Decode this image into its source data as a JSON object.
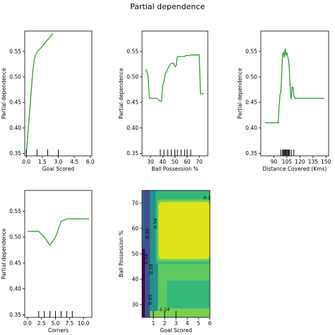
{
  "figure": {
    "title": "Partial dependence"
  },
  "chart_data": [
    {
      "type": "line",
      "xlabel": "Goal Scored",
      "ylabel": "Partial dependence",
      "xlim": [
        -0.15,
        6.15
      ],
      "ylim": [
        0.345,
        0.59
      ],
      "xticks": [
        0,
        1.5,
        3,
        4.5,
        6
      ],
      "xtick_labels": [
        "0.0",
        "1.5",
        "3.0",
        "4.5",
        "6.0"
      ],
      "yticks": [
        0.35,
        0.4,
        0.45,
        0.5,
        0.55
      ],
      "ytick_labels": [
        "0.35",
        "0.40",
        "0.45",
        "0.50",
        "0.55"
      ],
      "line_color": "#2ca02c",
      "x": [
        0,
        0.15,
        0.3,
        0.45,
        0.6,
        0.75,
        0.9,
        1.05,
        1.5,
        2.0,
        2.5
      ],
      "y": [
        0.35,
        0.39,
        0.43,
        0.47,
        0.51,
        0.535,
        0.545,
        0.55,
        0.56,
        0.573,
        0.585
      ],
      "rug": [
        0,
        1,
        2,
        3
      ]
    },
    {
      "type": "line",
      "xlabel": "Ball Possession %",
      "ylabel": "Partial dependence",
      "xlim": [
        23,
        77
      ],
      "ylim": [
        0.345,
        0.59
      ],
      "xticks": [
        30,
        40,
        50,
        60,
        70
      ],
      "xtick_labels": [
        "30",
        "40",
        "50",
        "60",
        "70"
      ],
      "yticks": [
        0.35,
        0.4,
        0.45,
        0.5,
        0.55
      ],
      "ytick_labels": [
        "0.35",
        "0.40",
        "0.45",
        "0.50",
        "0.55"
      ],
      "line_color": "#2ca02c",
      "x": [
        26,
        27,
        28,
        29,
        35,
        38,
        39,
        40,
        41,
        42,
        43,
        44,
        45,
        47,
        49,
        50,
        51,
        52,
        55,
        58,
        59,
        62,
        63,
        68,
        70,
        71,
        72,
        74
      ],
      "y": [
        0.515,
        0.51,
        0.5,
        0.458,
        0.458,
        0.452,
        0.452,
        0.485,
        0.49,
        0.505,
        0.51,
        0.515,
        0.52,
        0.527,
        0.527,
        0.52,
        0.522,
        0.54,
        0.54,
        0.54,
        0.542,
        0.542,
        0.543,
        0.543,
        0.543,
        0.467,
        0.467,
        0.467
      ],
      "rug": [
        38,
        41,
        44,
        47,
        50,
        52,
        55,
        58,
        60,
        63
      ]
    },
    {
      "type": "line",
      "xlabel": "Distance Covered (Kms)",
      "ylabel": "Partial dependence",
      "xlim": [
        75,
        153
      ],
      "ylim": [
        0.345,
        0.59
      ],
      "xticks": [
        90,
        105,
        120,
        135,
        150
      ],
      "xtick_labels": [
        "90",
        "105",
        "120",
        "135",
        "150"
      ],
      "yticks": [
        0.35,
        0.4,
        0.45,
        0.5,
        0.55
      ],
      "ytick_labels": [
        "0.35",
        "0.40",
        "0.45",
        "0.50",
        "0.55"
      ],
      "line_color": "#2ca02c",
      "x": [
        80,
        95,
        96,
        97,
        98,
        99,
        100,
        101,
        102,
        103,
        104,
        105,
        106,
        107,
        108,
        109,
        110,
        111,
        112,
        113,
        114,
        115,
        148
      ],
      "y": [
        0.41,
        0.41,
        0.44,
        0.465,
        0.47,
        0.5,
        0.545,
        0.548,
        0.538,
        0.556,
        0.543,
        0.547,
        0.54,
        0.532,
        0.51,
        0.47,
        0.456,
        0.48,
        0.48,
        0.463,
        0.458,
        0.458,
        0.458
      ],
      "rug": [
        98,
        100,
        101,
        102,
        103,
        104,
        105,
        106,
        107,
        108,
        110,
        113
      ]
    },
    {
      "type": "line",
      "xlabel": "Corners",
      "ylabel": "Partial dependence",
      "xlim": [
        -0.5,
        11.5
      ],
      "ylim": [
        0.345,
        0.59
      ],
      "xticks": [
        0.0,
        2.5,
        5.0,
        7.5,
        10.0
      ],
      "xtick_labels": [
        "0.0",
        "2.5",
        "5.0",
        "7.5",
        "10.0"
      ],
      "yticks": [
        0.35,
        0.4,
        0.45,
        0.5,
        0.55
      ],
      "ytick_labels": [
        "0.35",
        "0.40",
        "0.45",
        "0.50",
        "0.55"
      ],
      "line_color": "#2ca02c",
      "x": [
        0,
        2,
        3,
        4,
        5,
        6,
        7,
        8,
        9,
        11
      ],
      "y": [
        0.511,
        0.511,
        0.5,
        0.484,
        0.5,
        0.53,
        0.535,
        0.535,
        0.535,
        0.535
      ],
      "rug": [
        2,
        3,
        4,
        5,
        6,
        7,
        8
      ]
    },
    {
      "type": "heatmap",
      "xlabel": "Goal Scored",
      "ylabel": "Ball Possession %",
      "xlim": [
        0,
        6
      ],
      "ylim": [
        25,
        75
      ],
      "xticks": [
        1,
        2,
        3,
        4,
        5,
        6
      ],
      "xtick_labels": [
        "1",
        "2",
        "3",
        "4",
        "5",
        "6"
      ],
      "yticks": [
        30,
        40,
        50,
        60,
        70
      ],
      "ytick_labels": [
        "30",
        "40",
        "50",
        "60",
        "70"
      ],
      "fill_colors": [
        "#440154",
        "#3b528b",
        "#21918c",
        "#5ec962",
        "#dde318"
      ],
      "contour_labels": [
        "0.45",
        "0.50",
        "0.54",
        "0.56",
        "0.58",
        "0.1",
        "0.54"
      ],
      "rug": [
        1,
        2,
        3
      ]
    }
  ]
}
